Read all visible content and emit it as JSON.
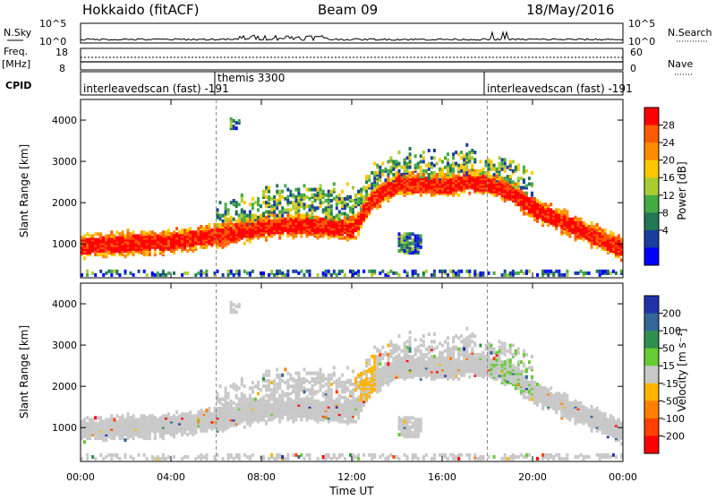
{
  "header": {
    "station": "Hokkaido (fitACF)",
    "beam": "Beam 09",
    "date": "18/May/2016"
  },
  "status_strips": {
    "nsky_label": "N.Sky",
    "nsearch_label": "N.Search",
    "freq_label_top": "Freq.",
    "freq_label_unit": "[MHz]",
    "nave_label": "Nave",
    "cpid_label": "CPID",
    "sky_ticks": [
      "10^5",
      "10^0"
    ],
    "freq_ticks": [
      "18",
      "8"
    ],
    "nave_ticks": [
      "60",
      "0"
    ]
  },
  "cpid": {
    "segments": [
      {
        "name": "interleavedscan (fast)  -191"
      },
      {
        "name": "themis 3300"
      },
      {
        "name": "interleavedscan (fast)  -191"
      }
    ]
  },
  "colorbars": {
    "power": {
      "label": "Power [dB]",
      "ticks": [
        "28",
        "24",
        "20",
        "16",
        "12",
        "8",
        "4"
      ],
      "colors": [
        "#ff0000",
        "#ff5a00",
        "#ff8c00",
        "#ffc800",
        "#aacc33",
        "#44aa44",
        "#227755",
        "#1a3da0",
        "#0000ff"
      ]
    },
    "velocity": {
      "label": "Velocity [m s⁻¹]",
      "ticks": [
        "200",
        "100",
        "50",
        "15",
        "-15",
        "-50",
        "-100",
        "-200"
      ],
      "colors": [
        "#2233aa",
        "#336699",
        "#2f8f4f",
        "#66cc33",
        "#c8c8c8",
        "#ffb400",
        "#ff8000",
        "#ff4000",
        "#ff0000"
      ]
    }
  },
  "chart_data": [
    {
      "type": "heatmap",
      "name": "power",
      "ylabel": "Slant Range [km]",
      "xlabel": "Time UT",
      "x_ticks": [
        "00:00",
        "04:00",
        "08:00",
        "12:00",
        "16:00",
        "20:00",
        "00:00"
      ],
      "y_ticks": [
        "1000",
        "2000",
        "3000",
        "4000"
      ],
      "xlim": [
        0,
        24
      ],
      "ylim": [
        180,
        4500
      ],
      "color_scale": [
        0,
        30
      ],
      "echo_bands": [
        {
          "t": [
            0,
            2,
            4,
            6,
            8,
            10,
            12,
            13,
            14,
            16,
            17,
            18,
            19,
            20,
            22,
            24
          ],
          "center": [
            1000,
            1050,
            1100,
            1250,
            1450,
            1500,
            1400,
            2200,
            2500,
            2450,
            2550,
            2500,
            2300,
            1900,
            1400,
            900
          ],
          "width": 450,
          "power": 24
        }
      ],
      "dashed_lines_x": [
        6,
        18
      ]
    },
    {
      "type": "heatmap",
      "name": "velocity",
      "ylabel": "Slant Range [km]",
      "xlabel": "Time UT",
      "x_ticks": [
        "00:00",
        "04:00",
        "08:00",
        "12:00",
        "16:00",
        "20:00",
        "00:00"
      ],
      "y_ticks": [
        "1000",
        "2000",
        "3000",
        "4000"
      ],
      "xlim": [
        0,
        24
      ],
      "ylim": [
        180,
        4500
      ],
      "color_scale": [
        -250,
        250
      ],
      "dashed_lines_x": [
        6,
        18
      ]
    }
  ]
}
